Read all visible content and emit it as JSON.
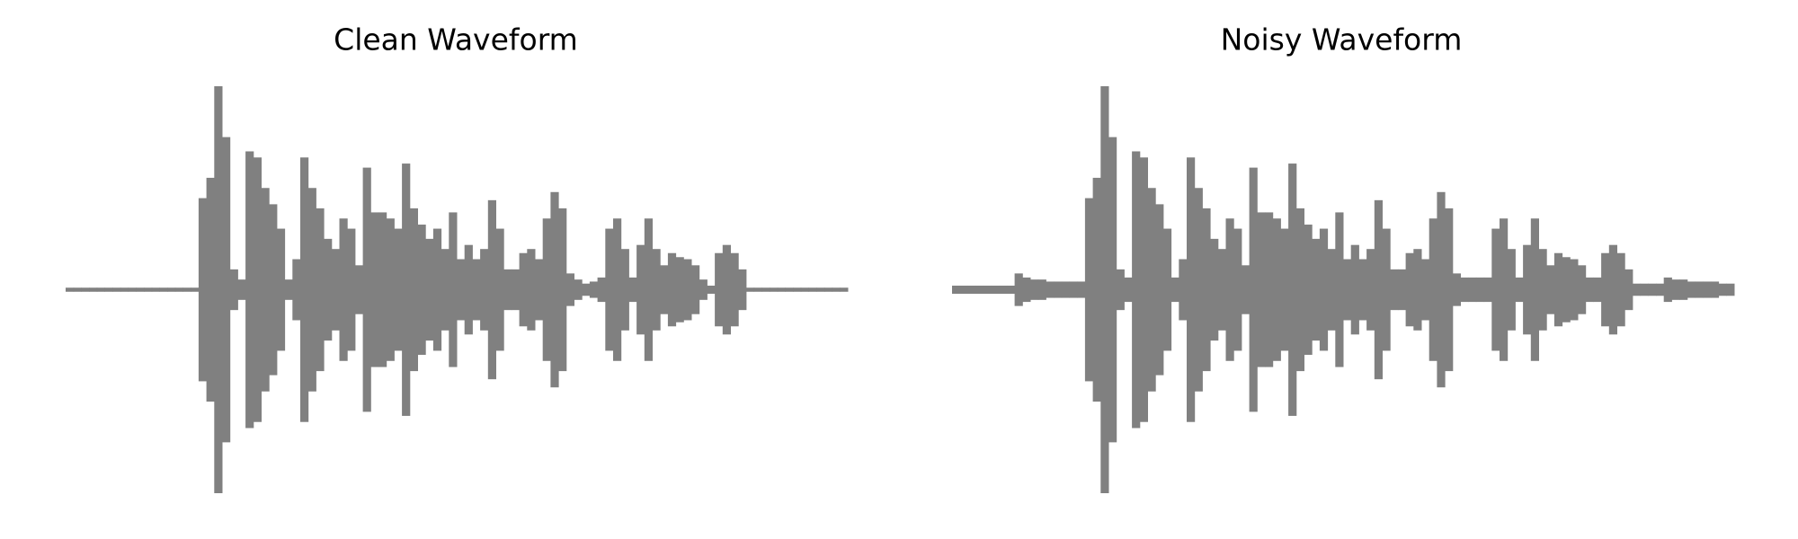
{
  "chart_data": [
    {
      "type": "waveform",
      "title": "Clean Waveform",
      "color": "#808080",
      "ylim": [
        -1,
        1
      ],
      "values": [
        0.01,
        0.01,
        0.01,
        0.01,
        0.01,
        0.01,
        0.01,
        0.01,
        0.01,
        0.01,
        0.01,
        0.01,
        0.01,
        0.01,
        0.01,
        0.01,
        0.01,
        0.45,
        0.55,
        1.0,
        0.75,
        0.1,
        0.05,
        0.68,
        0.65,
        0.5,
        0.42,
        0.3,
        0.05,
        0.15,
        0.65,
        0.5,
        0.4,
        0.25,
        0.2,
        0.35,
        0.3,
        0.12,
        0.6,
        0.38,
        0.38,
        0.35,
        0.3,
        0.62,
        0.4,
        0.32,
        0.25,
        0.3,
        0.2,
        0.38,
        0.15,
        0.22,
        0.15,
        0.2,
        0.44,
        0.3,
        0.1,
        0.1,
        0.18,
        0.2,
        0.15,
        0.35,
        0.48,
        0.4,
        0.08,
        0.05,
        0.03,
        0.04,
        0.06,
        0.3,
        0.35,
        0.2,
        0.06,
        0.22,
        0.35,
        0.2,
        0.12,
        0.18,
        0.16,
        0.15,
        0.12,
        0.05,
        0.02,
        0.18,
        0.22,
        0.18,
        0.1,
        0.01,
        0.01,
        0.01,
        0.01,
        0.01,
        0.01,
        0.01,
        0.01,
        0.01,
        0.01,
        0.01,
        0.01,
        0.01
      ]
    },
    {
      "type": "waveform",
      "title": "Noisy Waveform",
      "color": "#808080",
      "ylim": [
        -1,
        1
      ],
      "values": [
        0.02,
        0.02,
        0.02,
        0.02,
        0.02,
        0.02,
        0.02,
        0.02,
        0.08,
        0.06,
        0.05,
        0.05,
        0.04,
        0.04,
        0.04,
        0.04,
        0.04,
        0.45,
        0.55,
        1.0,
        0.75,
        0.1,
        0.06,
        0.68,
        0.65,
        0.5,
        0.42,
        0.3,
        0.06,
        0.15,
        0.65,
        0.5,
        0.4,
        0.25,
        0.2,
        0.35,
        0.3,
        0.12,
        0.6,
        0.38,
        0.38,
        0.35,
        0.3,
        0.62,
        0.4,
        0.32,
        0.25,
        0.3,
        0.2,
        0.38,
        0.15,
        0.22,
        0.15,
        0.2,
        0.44,
        0.3,
        0.1,
        0.1,
        0.18,
        0.2,
        0.15,
        0.35,
        0.48,
        0.4,
        0.08,
        0.06,
        0.06,
        0.06,
        0.06,
        0.3,
        0.35,
        0.2,
        0.06,
        0.22,
        0.35,
        0.2,
        0.12,
        0.18,
        0.16,
        0.15,
        0.12,
        0.06,
        0.06,
        0.18,
        0.22,
        0.18,
        0.1,
        0.03,
        0.03,
        0.03,
        0.03,
        0.06,
        0.05,
        0.05,
        0.04,
        0.04,
        0.04,
        0.04,
        0.03,
        0.03
      ]
    }
  ]
}
